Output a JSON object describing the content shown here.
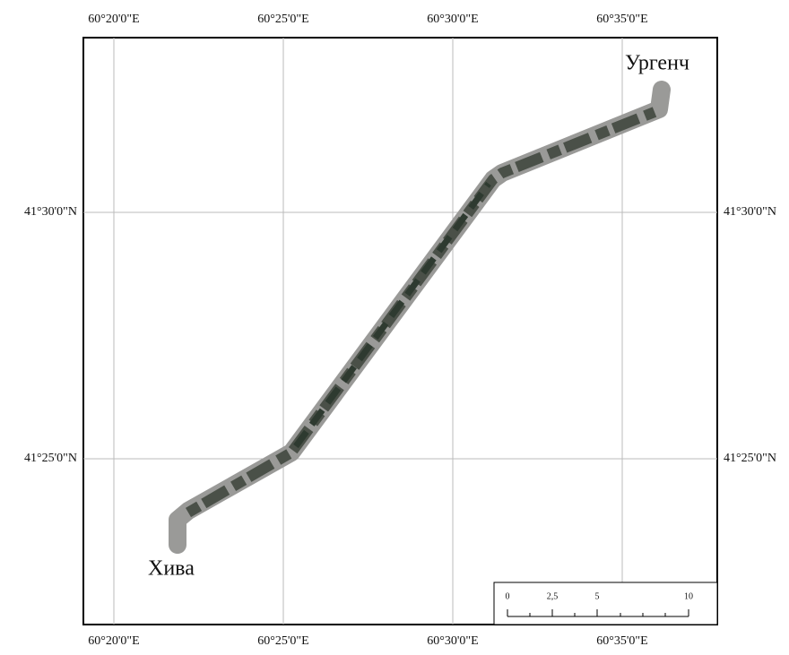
{
  "map": {
    "lon_labels": [
      "60°20'0\"E",
      "60°25'0\"E",
      "60°30'0\"E",
      "60°35'0\"E"
    ],
    "lat_labels": [
      "41°30'0\"N",
      "41°25'0\"N"
    ],
    "places": [
      "Ургенч",
      "Хива"
    ],
    "scale_bar": [
      "0",
      "2,5",
      "5",
      "10"
    ]
  }
}
